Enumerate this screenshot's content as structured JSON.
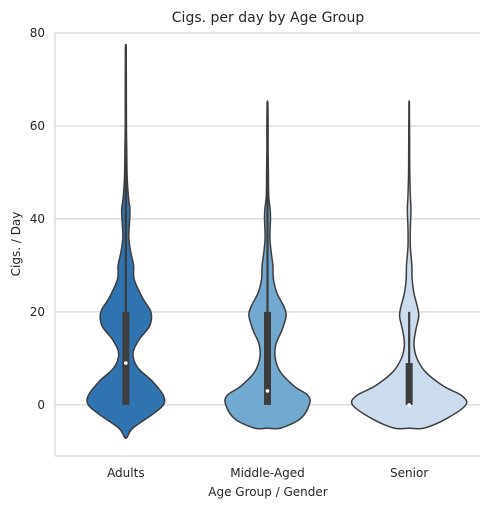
{
  "chart_data": {
    "type": "violin",
    "title": "Cigs. per day by Age Group",
    "xlabel": "Age Group / Gender",
    "ylabel": "Cigs. / Day",
    "categories": [
      "Adults",
      "Middle-Aged",
      "Senior"
    ],
    "ylim": [
      -11,
      80
    ],
    "yticks": [
      0,
      20,
      40,
      60,
      80
    ],
    "grid": "horizontal",
    "colors": [
      "#2f73b1",
      "#72a9d0",
      "#cbdcee"
    ],
    "outline_color": "#3d3d3d",
    "violins": [
      {
        "category": "Adults",
        "min": -7,
        "max": 77,
        "median": 9,
        "q1": 0,
        "q3": 20,
        "whisker_low": 0,
        "whisker_high": 77,
        "density": [
          [
            -7,
            0.02
          ],
          [
            -5,
            0.12
          ],
          [
            -2,
            0.45
          ],
          [
            0,
            0.63
          ],
          [
            2,
            0.63
          ],
          [
            5,
            0.45
          ],
          [
            8,
            0.2
          ],
          [
            11,
            0.12
          ],
          [
            14,
            0.22
          ],
          [
            17,
            0.4
          ],
          [
            20,
            0.42
          ],
          [
            23,
            0.28
          ],
          [
            27,
            0.14
          ],
          [
            30,
            0.13
          ],
          [
            33,
            0.08
          ],
          [
            36,
            0.05
          ],
          [
            39,
            0.06
          ],
          [
            42,
            0.07
          ],
          [
            44,
            0.05
          ],
          [
            47,
            0.03
          ],
          [
            50,
            0.02
          ],
          [
            55,
            0.015
          ],
          [
            60,
            0.01
          ],
          [
            70,
            0.008
          ],
          [
            77,
            0.005
          ]
        ]
      },
      {
        "category": "Middle-Aged",
        "min": -5,
        "max": 65,
        "median": 3,
        "q1": 0,
        "q3": 20,
        "whisker_low": 0,
        "whisker_high": 65,
        "density": [
          [
            -5,
            0.22
          ],
          [
            -3,
            0.55
          ],
          [
            0,
            0.7
          ],
          [
            2,
            0.68
          ],
          [
            4,
            0.45
          ],
          [
            7,
            0.22
          ],
          [
            10,
            0.13
          ],
          [
            13,
            0.14
          ],
          [
            16,
            0.24
          ],
          [
            19,
            0.31
          ],
          [
            21,
            0.28
          ],
          [
            24,
            0.16
          ],
          [
            27,
            0.1
          ],
          [
            30,
            0.09
          ],
          [
            33,
            0.06
          ],
          [
            36,
            0.04
          ],
          [
            40,
            0.05
          ],
          [
            42,
            0.045
          ],
          [
            45,
            0.02
          ],
          [
            50,
            0.015
          ],
          [
            55,
            0.01
          ],
          [
            60,
            0.01
          ],
          [
            65,
            0.005
          ]
        ]
      },
      {
        "category": "Senior",
        "min": -5,
        "max": 65,
        "median": 0,
        "q1": 0,
        "q3": 9,
        "whisker_low": 0,
        "whisker_high": 20,
        "density": [
          [
            -5,
            0.25
          ],
          [
            -3,
            0.62
          ],
          [
            0,
            0.95
          ],
          [
            2,
            0.88
          ],
          [
            4,
            0.58
          ],
          [
            7,
            0.28
          ],
          [
            10,
            0.13
          ],
          [
            13,
            0.08
          ],
          [
            16,
            0.11
          ],
          [
            19,
            0.16
          ],
          [
            21,
            0.14
          ],
          [
            24,
            0.08
          ],
          [
            27,
            0.05
          ],
          [
            30,
            0.045
          ],
          [
            34,
            0.02
          ],
          [
            38,
            0.02
          ],
          [
            42,
            0.03
          ],
          [
            45,
            0.02
          ],
          [
            50,
            0.01
          ],
          [
            55,
            0.008
          ],
          [
            60,
            0.006
          ],
          [
            65,
            0.004
          ]
        ]
      }
    ]
  }
}
